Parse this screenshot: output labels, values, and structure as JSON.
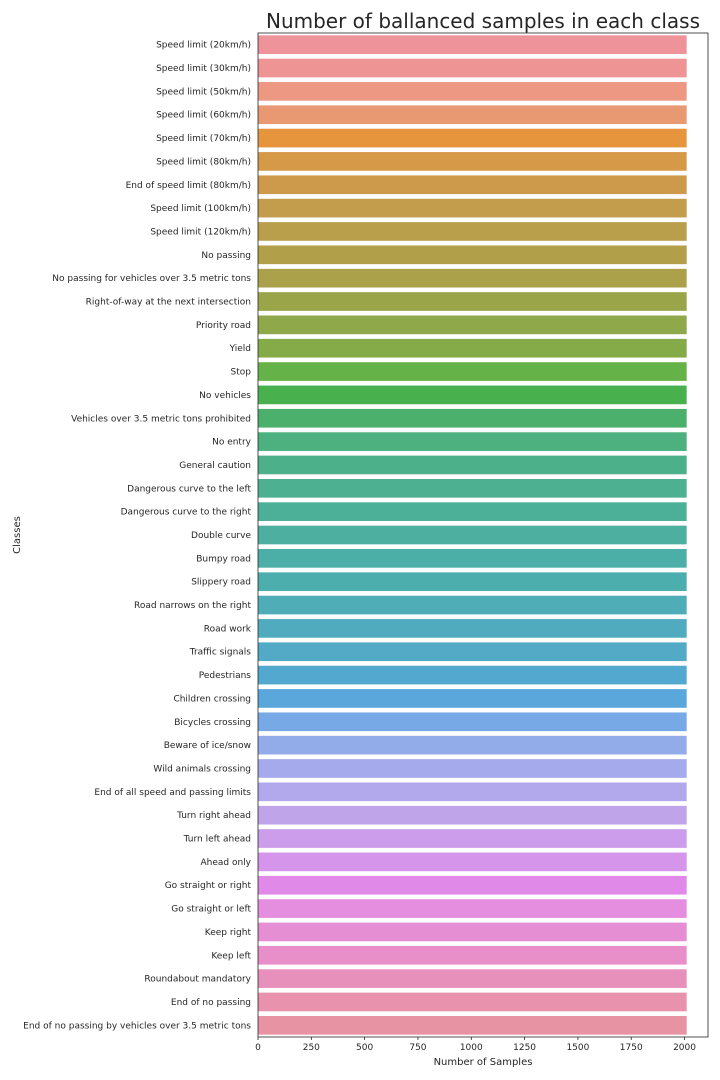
{
  "chart_data": {
    "type": "bar",
    "orientation": "horizontal",
    "title": "Number of ballanced samples in each class",
    "xlabel": "Number of Samples",
    "ylabel": "Classes",
    "xlim": [
      0,
      2110
    ],
    "xticks": [
      0,
      250,
      500,
      750,
      1000,
      1250,
      1500,
      1750,
      2000
    ],
    "grid": false,
    "categories": [
      "Speed limit (20km/h)",
      "Speed limit (30km/h)",
      "Speed limit (50km/h)",
      "Speed limit (60km/h)",
      "Speed limit (70km/h)",
      "Speed limit (80km/h)",
      "End of speed limit (80km/h)",
      "Speed limit (100km/h)",
      "Speed limit (120km/h)",
      "No passing",
      "No passing for vehicles over 3.5 metric tons",
      "Right-of-way at the next intersection",
      "Priority road",
      "Yield",
      "Stop",
      "No vehicles",
      "Vehicles over 3.5 metric tons prohibited",
      "No entry",
      "General caution",
      "Dangerous curve to the left",
      "Dangerous curve to the right",
      "Double curve",
      "Bumpy road",
      "Slippery road",
      "Road narrows on the right",
      "Road work",
      "Traffic signals",
      "Pedestrians",
      "Children crossing",
      "Bicycles crossing",
      "Beware of ice/snow",
      "Wild animals crossing",
      "End of all speed and passing limits",
      "Turn right ahead",
      "Turn left ahead",
      "Ahead only",
      "Go straight or right",
      "Go straight or left",
      "Keep right",
      "Keep left",
      "Roundabout mandatory",
      "End of no passing",
      "End of no passing by vehicles over 3.5 metric tons"
    ],
    "values": [
      2010,
      2010,
      2010,
      2010,
      2010,
      2010,
      2010,
      2010,
      2010,
      2010,
      2010,
      2010,
      2010,
      2010,
      2010,
      2010,
      2010,
      2010,
      2010,
      2010,
      2010,
      2010,
      2010,
      2010,
      2010,
      2010,
      2010,
      2010,
      2010,
      2010,
      2010,
      2010,
      2010,
      2010,
      2010,
      2010,
      2010,
      2010,
      2010,
      2010,
      2010,
      2010,
      2010
    ],
    "colors": [
      "#ef939b",
      "#ee9495",
      "#ec9883",
      "#e99972",
      "#e7953c",
      "#d69948",
      "#cc9a4a",
      "#c39d4b",
      "#b99f4b",
      "#b29f49",
      "#aaa14a",
      "#9aa54a",
      "#8ea84a",
      "#85ab48",
      "#65b249",
      "#48b14e",
      "#4bb06c",
      "#4cb07f",
      "#4cb08a",
      "#4cb091",
      "#4cb098",
      "#4cafa0",
      "#4cafa7",
      "#4cafae",
      "#4eadb6",
      "#50abbe",
      "#52aac6",
      "#53a8cf",
      "#5aa7dc",
      "#76a9e5",
      "#92abe9",
      "#a4aaeb",
      "#b2a9ec",
      "#c0a4e9",
      "#cb9deb",
      "#d495ea",
      "#e089e8",
      "#e58dde",
      "#e68ed3",
      "#e88ec9",
      "#e790bb",
      "#e892ad",
      "#e893a3"
    ]
  }
}
